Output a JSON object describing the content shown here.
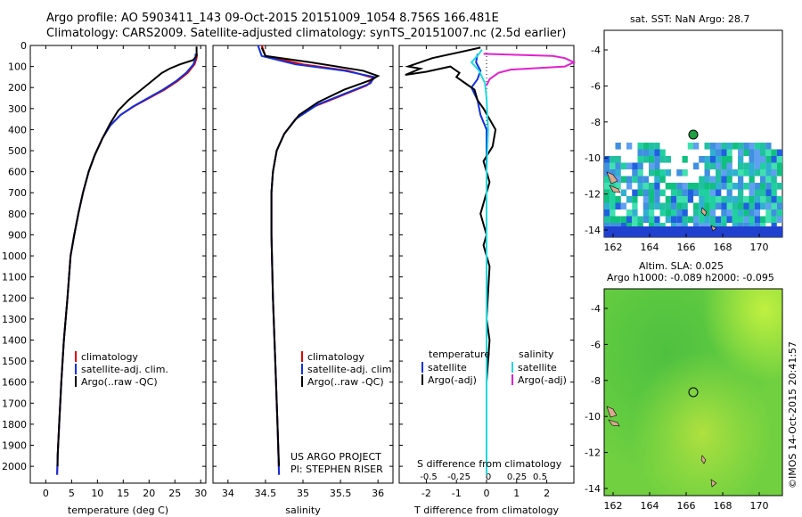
{
  "header": {
    "line1": "Argo profile: AO 5903411_143 09-Oct-2015 20151009_1054 8.756S 166.481E",
    "line2": "Climatology: CARS2009. Satellite-adjusted climatology: synTS_20151007.nc (2.5d earlier)"
  },
  "colors": {
    "climatology": "#e00000",
    "satellite": "#1030e0",
    "argo": "#000000",
    "sat_salinity": "#20d8e0",
    "argo_salinity": "#e020d0"
  },
  "chart_data": [
    {
      "type": "line",
      "id": "temperature",
      "xlabel": "temperature (deg C)",
      "ylabel": "",
      "xlim": [
        -3,
        31
      ],
      "ylim": [
        2080,
        0
      ],
      "xticks": [
        0,
        5,
        10,
        15,
        20,
        25,
        30
      ],
      "yticks": [
        0,
        100,
        200,
        300,
        400,
        500,
        600,
        700,
        800,
        900,
        1000,
        1100,
        1200,
        1300,
        1400,
        1500,
        1600,
        1700,
        1800,
        1900,
        2000
      ],
      "legend": [
        "climatology",
        "satellite-adj. clim.",
        "Argo(..raw -QC)"
      ],
      "series": [
        {
          "name": "climatology",
          "color_key": "climatology",
          "points": [
            [
              29.3,
              40
            ],
            [
              29.2,
              60
            ],
            [
              28.8,
              90
            ],
            [
              27.5,
              130
            ],
            [
              25.5,
              170
            ],
            [
              23,
              210
            ],
            [
              20,
              250
            ],
            [
              17,
              290
            ],
            [
              14.5,
              330
            ],
            [
              12.5,
              380
            ],
            [
              11,
              440
            ],
            [
              9.5,
              520
            ],
            [
              8.3,
              600
            ],
            [
              7.2,
              700
            ],
            [
              6.3,
              800
            ],
            [
              5.5,
              900
            ],
            [
              4.8,
              1000
            ],
            [
              4.2,
              1200
            ],
            [
              3.5,
              1400
            ],
            [
              3.0,
              1600
            ],
            [
              2.6,
              1800
            ],
            [
              2.3,
              1950
            ],
            [
              2.2,
              2040
            ]
          ]
        },
        {
          "name": "satellite-adj. clim.",
          "color_key": "satellite",
          "points": [
            [
              29.0,
              40
            ],
            [
              29.0,
              60
            ],
            [
              28.6,
              90
            ],
            [
              27.2,
              130
            ],
            [
              25.2,
              170
            ],
            [
              22.7,
              210
            ],
            [
              19.8,
              250
            ],
            [
              16.9,
              290
            ],
            [
              14.5,
              330
            ],
            [
              12.5,
              380
            ],
            [
              11,
              440
            ],
            [
              9.5,
              520
            ],
            [
              8.3,
              600
            ],
            [
              7.2,
              700
            ],
            [
              6.3,
              800
            ],
            [
              5.5,
              900
            ],
            [
              4.8,
              1000
            ],
            [
              4.2,
              1200
            ],
            [
              3.5,
              1400
            ],
            [
              3.0,
              1600
            ],
            [
              2.6,
              1800
            ],
            [
              2.3,
              1950
            ],
            [
              2.2,
              2040
            ]
          ]
        },
        {
          "name": "Argo(..raw -QC)",
          "color_key": "argo",
          "points": [
            [
              29.2,
              5
            ],
            [
              29.2,
              50
            ],
            [
              28.5,
              70
            ],
            [
              26,
              90
            ],
            [
              24,
              110
            ],
            [
              22.5,
              130
            ],
            [
              21.5,
              150
            ],
            [
              20,
              180
            ],
            [
              18,
              220
            ],
            [
              16,
              260
            ],
            [
              14,
              310
            ],
            [
              12.5,
              370
            ],
            [
              11,
              440
            ],
            [
              9.5,
              520
            ],
            [
              8.3,
              600
            ],
            [
              7.2,
              700
            ],
            [
              6.3,
              800
            ],
            [
              5.5,
              900
            ],
            [
              4.8,
              1000
            ],
            [
              4.2,
              1200
            ],
            [
              3.5,
              1400
            ],
            [
              3.0,
              1600
            ],
            [
              2.6,
              1800
            ],
            [
              2.3,
              1950
            ],
            [
              2.3,
              2000
            ]
          ]
        }
      ]
    },
    {
      "type": "line",
      "id": "salinity",
      "xlabel": "salinity",
      "ylabel": "",
      "xlim": [
        33.8,
        36.2
      ],
      "ylim": [
        2080,
        0
      ],
      "xticks": [
        34,
        34.5,
        35,
        35.5,
        36
      ],
      "legend": [
        "climatology",
        "satellite-adj. clim.",
        "Argo(..raw -QC)"
      ],
      "annotations": [
        "US ARGO PROJECT",
        "PI: STEPHEN RISER"
      ],
      "series": [
        {
          "name": "climatology",
          "color_key": "climatology",
          "points": [
            [
              34.45,
              0
            ],
            [
              34.5,
              50
            ],
            [
              35.0,
              90
            ],
            [
              35.6,
              120
            ],
            [
              35.95,
              155
            ],
            [
              35.85,
              190
            ],
            [
              35.5,
              240
            ],
            [
              35.15,
              290
            ],
            [
              34.9,
              350
            ],
            [
              34.75,
              420
            ],
            [
              34.65,
              500
            ],
            [
              34.6,
              600
            ],
            [
              34.58,
              700
            ],
            [
              34.58,
              900
            ],
            [
              34.6,
              1200
            ],
            [
              34.63,
              1500
            ],
            [
              34.66,
              1800
            ],
            [
              34.68,
              2040
            ]
          ]
        },
        {
          "name": "satellite-adj. clim.",
          "color_key": "satellite",
          "points": [
            [
              34.4,
              0
            ],
            [
              34.45,
              50
            ],
            [
              34.9,
              90
            ],
            [
              35.55,
              120
            ],
            [
              35.95,
              150
            ],
            [
              35.9,
              180
            ],
            [
              35.55,
              230
            ],
            [
              35.2,
              280
            ],
            [
              34.9,
              350
            ],
            [
              34.75,
              420
            ],
            [
              34.65,
              500
            ],
            [
              34.6,
              600
            ],
            [
              34.58,
              700
            ],
            [
              34.58,
              900
            ],
            [
              34.6,
              1200
            ],
            [
              34.63,
              1500
            ],
            [
              34.66,
              1800
            ],
            [
              34.68,
              2040
            ]
          ]
        },
        {
          "name": "Argo(..raw -QC)",
          "color_key": "argo",
          "points": [
            [
              34.45,
              10
            ],
            [
              34.5,
              50
            ],
            [
              35.1,
              80
            ],
            [
              35.8,
              120
            ],
            [
              36.0,
              145
            ],
            [
              35.9,
              165
            ],
            [
              35.55,
              210
            ],
            [
              35.2,
              270
            ],
            [
              34.95,
              330
            ],
            [
              34.75,
              420
            ],
            [
              34.65,
              500
            ],
            [
              34.6,
              600
            ],
            [
              34.58,
              700
            ],
            [
              34.58,
              900
            ],
            [
              34.6,
              1200
            ],
            [
              34.63,
              1500
            ],
            [
              34.66,
              1800
            ],
            [
              34.68,
              2000
            ]
          ]
        }
      ]
    },
    {
      "type": "line",
      "id": "differences",
      "xlabel": "T difference from climatology",
      "xlabel2": "S difference from climatology",
      "xlim": [
        -2.9,
        2.9
      ],
      "ylim": [
        2080,
        0
      ],
      "xticks": [
        -2,
        -1,
        0,
        1,
        2
      ],
      "xtick_labels_t": [
        "-2",
        "-1",
        "0",
        "1",
        "2"
      ],
      "xticks_s_positions": [
        -2,
        -1,
        0,
        1,
        2
      ],
      "xtick_labels_s": [
        "-0.5",
        "-0.25",
        "0",
        "0.25",
        "0.5"
      ],
      "legend_headers": [
        "temperature",
        "salinity"
      ],
      "legend": [
        "satellite",
        "Argo(-adj)",
        "satellite",
        "Argo(-adj)"
      ],
      "series": [
        {
          "name": "temperature satellite",
          "color_key": "satellite",
          "points": [
            [
              -0.3,
              40
            ],
            [
              -0.35,
              80
            ],
            [
              -0.2,
              120
            ],
            [
              -0.3,
              160
            ],
            [
              -0.5,
              200
            ],
            [
              -0.3,
              260
            ],
            [
              -0.2,
              330
            ],
            [
              0,
              400
            ],
            [
              0,
              600
            ],
            [
              0,
              800
            ],
            [
              0,
              1000
            ],
            [
              0,
              1500
            ],
            [
              0,
              2040
            ]
          ]
        },
        {
          "name": "temperature Argo(-adj)",
          "color_key": "argo",
          "points": [
            [
              -0.2,
              10
            ],
            [
              -1.8,
              60
            ],
            [
              -2.6,
              100
            ],
            [
              -2.2,
              110
            ],
            [
              -2.7,
              140
            ],
            [
              -2.0,
              125
            ],
            [
              -1.2,
              100
            ],
            [
              -0.9,
              130
            ],
            [
              -1.0,
              150
            ],
            [
              -0.7,
              180
            ],
            [
              -0.4,
              210
            ],
            [
              -0.3,
              260
            ],
            [
              -0.1,
              300
            ],
            [
              0.3,
              400
            ],
            [
              0.2,
              480
            ],
            [
              -0.1,
              550
            ],
            [
              0.1,
              650
            ],
            [
              0,
              700
            ],
            [
              -0.2,
              800
            ],
            [
              0,
              900
            ],
            [
              -0.1,
              950
            ],
            [
              0.1,
              1050
            ],
            [
              0,
              1300
            ],
            [
              0.1,
              1400
            ],
            [
              0,
              1600
            ],
            [
              0,
              2000
            ]
          ]
        },
        {
          "name": "salinity satellite",
          "color_key": "sat_salinity",
          "points": [
            [
              -0.15,
              20
            ],
            [
              -0.25,
              40
            ],
            [
              -0.5,
              80
            ],
            [
              -0.25,
              120
            ],
            [
              -0.05,
              180
            ],
            [
              0,
              250
            ],
            [
              0.05,
              400
            ],
            [
              0,
              600
            ],
            [
              0,
              900
            ],
            [
              0,
              1200
            ],
            [
              0,
              1600
            ],
            [
              0,
              2040
            ]
          ]
        },
        {
          "name": "salinity Argo(-adj)",
          "color_key": "argo_salinity",
          "points": [
            [
              -0.1,
              40
            ],
            [
              2.2,
              50
            ],
            [
              2.6,
              60
            ],
            [
              2.9,
              80
            ],
            [
              2.6,
              100
            ],
            [
              0.8,
              115
            ],
            [
              0.4,
              130
            ],
            [
              0.1,
              160
            ],
            [
              0,
              190
            ]
          ]
        }
      ]
    }
  ],
  "maps": {
    "sst": {
      "title": "sat. SST: NaN Argo: 28.7",
      "yticks": [
        "-4",
        "-6",
        "-8",
        "-10",
        "-12",
        "-14"
      ],
      "xticks": [
        "162",
        "164",
        "166",
        "168",
        "170"
      ]
    },
    "sla": {
      "title1": "Altim. SLA: 0.025",
      "title2": "Argo h1000: -0.089 h2000: -0.095",
      "yticks": [
        "-4",
        "-6",
        "-8",
        "-10",
        "-12",
        "-14"
      ],
      "xticks": [
        "162",
        "164",
        "166",
        "168",
        "170"
      ]
    }
  },
  "watermark": "©IMOS 14-Oct-2015 20:41:57"
}
